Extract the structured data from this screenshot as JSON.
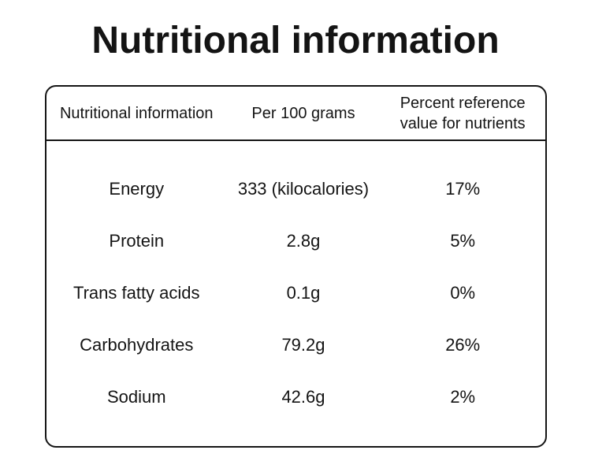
{
  "page": {
    "title": "Nutritional information"
  },
  "table": {
    "columns": [
      {
        "label": "Nutritional information"
      },
      {
        "label": "Per 100 grams"
      },
      {
        "label": "Percent reference value for nutrients"
      }
    ],
    "rows": [
      {
        "nutrient": "Energy",
        "per_100g": "333 (kilocalories)",
        "percent_reference": "17%"
      },
      {
        "nutrient": "Protein",
        "per_100g": "2.8g",
        "percent_reference": "5%"
      },
      {
        "nutrient": "Trans fatty acids",
        "per_100g": "0.1g",
        "percent_reference": "0%"
      },
      {
        "nutrient": "Carbohydrates",
        "per_100g": "79.2g",
        "percent_reference": "26%"
      },
      {
        "nutrient": "Sodium",
        "per_100g": "42.6g",
        "percent_reference": "2%"
      }
    ]
  },
  "colors": {
    "text": "#141414",
    "border": "#151515",
    "background": "#ffffff"
  }
}
